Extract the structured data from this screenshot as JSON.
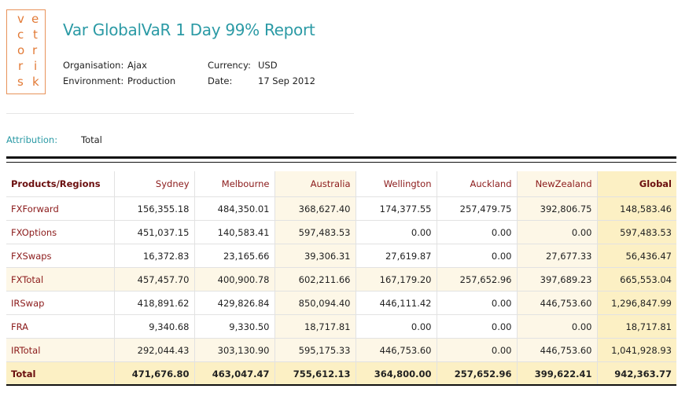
{
  "logo": {
    "letters": [
      "v",
      "e",
      "c",
      "t",
      "o",
      "r",
      "r",
      "i",
      "s",
      "k"
    ],
    "color": "#e27a36"
  },
  "report": {
    "title": "Var GlobalVaR 1 Day 99% Report",
    "organisation_label": "Organisation:",
    "organisation": "Ajax",
    "environment_label": "Environment:",
    "environment": "Production",
    "currency_label": "Currency:",
    "currency": "USD",
    "date_label": "Date:",
    "date": "17 Sep 2012",
    "attribution_label": "Attribution:",
    "attribution": "Total",
    "accent_color": "#2b9aa5"
  },
  "table": {
    "columns": [
      "Products/Regions",
      "Sydney",
      "Melbourne",
      "Australia",
      "Wellington",
      "Auckland",
      "NewZealand",
      "Global"
    ],
    "rows": [
      {
        "label": "FXForward",
        "values": [
          "156,355.18",
          "484,350.01",
          "368,627.40",
          "174,377.55",
          "257,479.75",
          "392,806.75",
          "148,583.46"
        ]
      },
      {
        "label": "FXOptions",
        "values": [
          "451,037.15",
          "140,583.41",
          "597,483.53",
          "0.00",
          "0.00",
          "0.00",
          "597,483.53"
        ]
      },
      {
        "label": "FXSwaps",
        "values": [
          "16,372.83",
          "23,165.66",
          "39,306.31",
          "27,619.87",
          "0.00",
          "27,677.33",
          "56,436.47"
        ]
      },
      {
        "label": "FXTotal",
        "values": [
          "457,457.70",
          "400,900.78",
          "602,211.66",
          "167,179.20",
          "257,652.96",
          "397,689.23",
          "665,553.04"
        ]
      },
      {
        "label": "IRSwap",
        "values": [
          "418,891.62",
          "429,826.84",
          "850,094.40",
          "446,111.42",
          "0.00",
          "446,753.60",
          "1,296,847.99"
        ]
      },
      {
        "label": "FRA",
        "values": [
          "9,340.68",
          "9,330.50",
          "18,717.81",
          "0.00",
          "0.00",
          "0.00",
          "18,717.81"
        ]
      },
      {
        "label": "IRTotal",
        "values": [
          "292,044.43",
          "303,130.90",
          "595,175.33",
          "446,753.60",
          "0.00",
          "446,753.60",
          "1,041,928.93"
        ]
      },
      {
        "label": "Total",
        "values": [
          "471,676.80",
          "463,047.47",
          "755,612.13",
          "364,800.00",
          "257,652.96",
          "399,622.41",
          "942,363.77"
        ]
      }
    ],
    "header_color": "#8b1a1a",
    "aggregate_fill": "#fdf7e7",
    "global_fill": "#fcf0c4"
  }
}
